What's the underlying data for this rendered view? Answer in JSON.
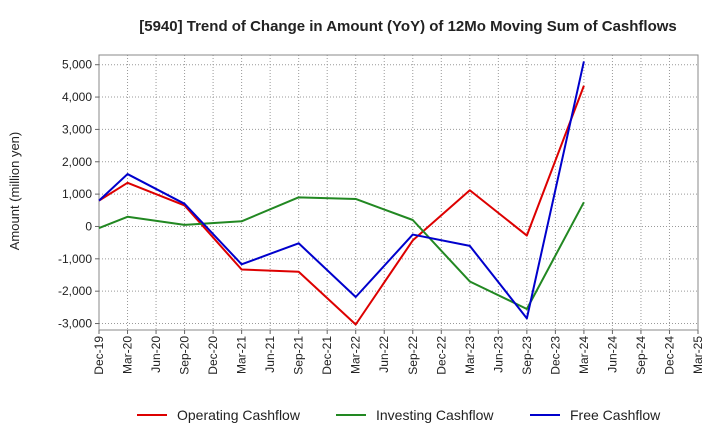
{
  "chart_data": {
    "type": "line",
    "title": "[5940]  Trend of Change in Amount (YoY) of 12Mo Moving Sum of Cashflows",
    "xlabel": "",
    "ylabel": "Amount (million yen)",
    "ylim": [
      -3200,
      5300
    ],
    "yticks": [
      5000,
      4000,
      3000,
      2000,
      1000,
      0,
      -1000,
      -2000,
      -3000
    ],
    "ytick_labels": [
      "5,000",
      "4,000",
      "3,000",
      "2,000",
      "1,000",
      "0",
      "-1,000",
      "-2,000",
      "-3,000"
    ],
    "categories": [
      "Dec-19",
      "Mar-20",
      "Jun-20",
      "Sep-20",
      "Dec-20",
      "Mar-21",
      "Jun-21",
      "Sep-21",
      "Dec-21",
      "Mar-22",
      "Jun-22",
      "Sep-22",
      "Dec-22",
      "Mar-23",
      "Jun-23",
      "Sep-23",
      "Dec-23",
      "Mar-24",
      "Jun-24",
      "Sep-24",
      "Dec-24",
      "Mar-25"
    ],
    "grid": true,
    "legend_position": "bottom",
    "series": [
      {
        "name": "Operating Cashflow",
        "color": "#dd0000",
        "values": [
          800,
          1350,
          null,
          650,
          null,
          -1330,
          null,
          -1400,
          null,
          -3030,
          null,
          -430,
          null,
          1120,
          null,
          -280,
          null,
          4350,
          null,
          null,
          null,
          null
        ]
      },
      {
        "name": "Investing Cashflow",
        "color": "#228822",
        "values": [
          -50,
          300,
          null,
          50,
          null,
          160,
          null,
          900,
          null,
          850,
          null,
          200,
          null,
          -1700,
          null,
          -2550,
          null,
          750,
          null,
          null,
          null,
          null
        ]
      },
      {
        "name": "Free Cashflow",
        "color": "#0000cc",
        "values": [
          800,
          1620,
          null,
          700,
          null,
          -1170,
          null,
          -520,
          null,
          -2180,
          null,
          -250,
          null,
          -600,
          null,
          -2840,
          null,
          5100,
          null,
          null,
          null,
          null
        ]
      }
    ]
  }
}
